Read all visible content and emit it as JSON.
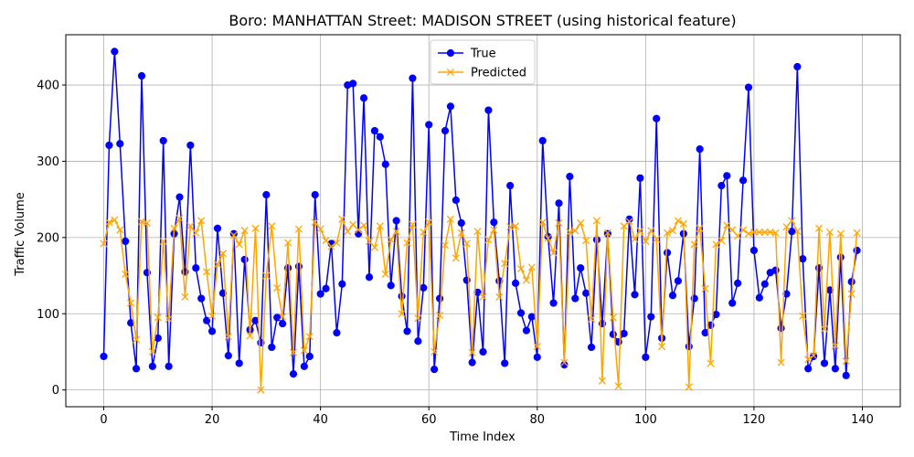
{
  "chart_data": {
    "type": "line",
    "title": "Boro: MANHATTAN Street: MADISON STREET (using historical feature)",
    "xlabel": "Time Index",
    "ylabel": "Traffic Volume",
    "xlim": [
      -7,
      147
    ],
    "ylim": [
      -22,
      466
    ],
    "xticks": [
      0,
      20,
      40,
      60,
      80,
      100,
      120,
      140
    ],
    "yticks": [
      0,
      100,
      200,
      300,
      400
    ],
    "grid": true,
    "legend_position": "top-center",
    "series": [
      {
        "name": "True",
        "color": "#0000ff",
        "marker": "circle",
        "values": [
          44,
          321,
          444,
          323,
          195,
          88,
          28,
          412,
          154,
          31,
          68,
          327,
          31,
          205,
          253,
          155,
          321,
          160,
          120,
          91,
          77,
          212,
          127,
          45,
          205,
          35,
          171,
          79,
          91,
          62,
          256,
          56,
          95,
          87,
          160,
          21,
          162,
          31,
          44,
          256,
          126,
          133,
          192,
          75,
          139,
          400,
          402,
          205,
          383,
          148,
          340,
          332,
          296,
          137,
          222,
          123,
          77,
          409,
          64,
          134,
          348,
          27,
          120,
          340,
          372,
          249,
          219,
          144,
          36,
          128,
          50,
          367,
          220,
          143,
          35,
          268,
          140,
          101,
          78,
          96,
          43,
          327,
          201,
          114,
          245,
          33,
          280,
          120,
          160,
          127,
          56,
          197,
          87,
          205,
          73,
          63,
          74,
          224,
          125,
          278,
          43,
          96,
          356,
          68,
          180,
          124,
          143,
          205,
          57,
          120,
          316,
          75,
          85,
          99,
          268,
          281,
          114,
          140,
          275,
          397,
          183,
          121,
          139,
          154,
          157,
          81,
          126,
          208,
          424,
          172,
          28,
          44,
          160,
          35,
          131,
          28,
          174,
          19,
          142,
          183
        ]
      },
      {
        "name": "Predicted",
        "color": "#ffa500",
        "marker": "x",
        "values": [
          192,
          220,
          223,
          210,
          152,
          114,
          66,
          221,
          219,
          50,
          95,
          195,
          93,
          212,
          225,
          122,
          215,
          206,
          222,
          155,
          97,
          165,
          179,
          70,
          203,
          191,
          209,
          71,
          212,
          0,
          150,
          215,
          134,
          96,
          193,
          49,
          211,
          52,
          70,
          220,
          211,
          196,
          188,
          193,
          224,
          208,
          217,
          210,
          216,
          195,
          187,
          215,
          152,
          197,
          208,
          100,
          193,
          217,
          94,
          207,
          220,
          50,
          98,
          190,
          224,
          173,
          206,
          192,
          49,
          208,
          122,
          197,
          210,
          122,
          166,
          214,
          215,
          159,
          144,
          161,
          57,
          220,
          199,
          180,
          219,
          36,
          207,
          209,
          219,
          196,
          93,
          222,
          12,
          206,
          95,
          5,
          215,
          221,
          198,
          209,
          195,
          209,
          198,
          57,
          206,
          209,
          222,
          218,
          4,
          191,
          212,
          133,
          35,
          191,
          196,
          216,
          210,
          202,
          210,
          205,
          207,
          207,
          207,
          207,
          206,
          36,
          214,
          222,
          208,
          97,
          40,
          45,
          212,
          80,
          207,
          58,
          205,
          38,
          126,
          206
        ]
      }
    ]
  }
}
